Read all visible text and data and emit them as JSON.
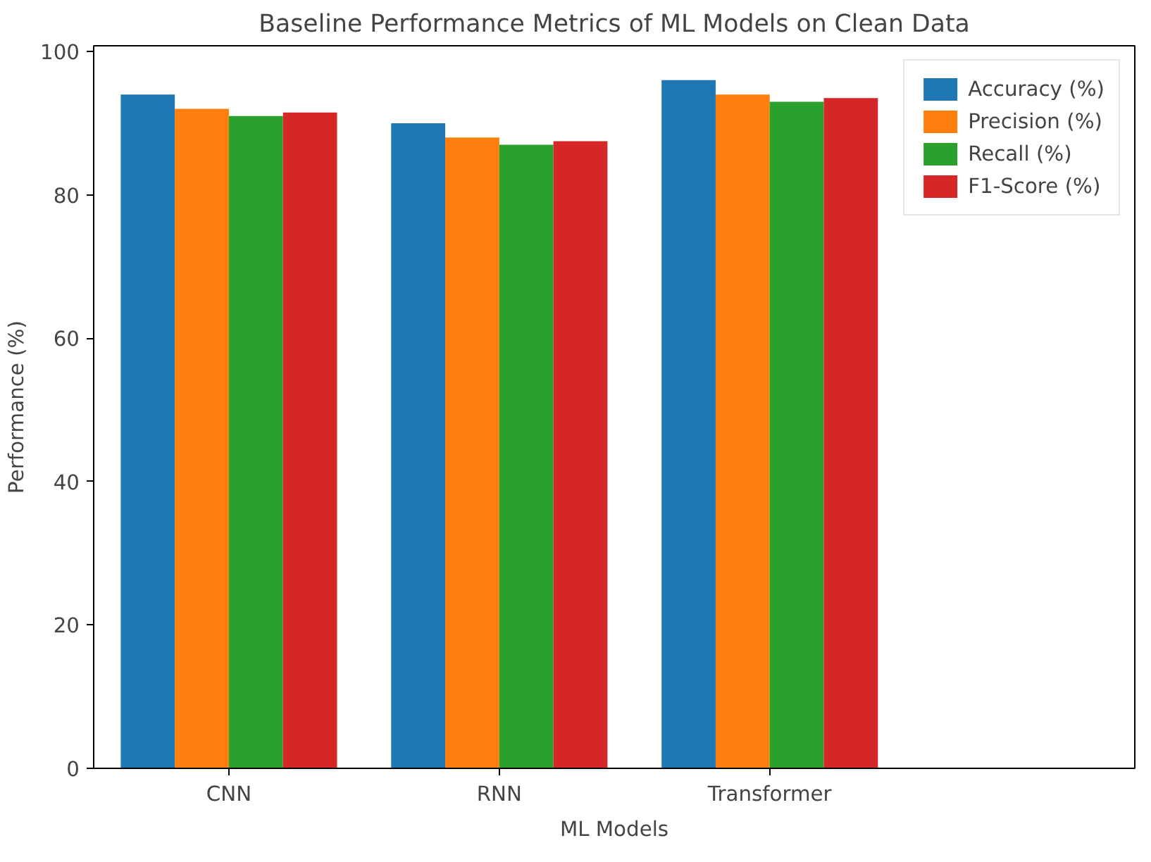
{
  "chart_data": {
    "type": "bar",
    "title": "Baseline Performance Metrics of ML Models on Clean Data",
    "xlabel": "ML Models",
    "ylabel": "Performance (%)",
    "categories": [
      "CNN",
      "RNN",
      "Transformer"
    ],
    "series": [
      {
        "name": "Accuracy (%)",
        "color": "#1f77b4",
        "values": [
          94,
          90,
          96
        ]
      },
      {
        "name": "Precision (%)",
        "color": "#ff7f0e",
        "values": [
          92,
          88,
          94
        ]
      },
      {
        "name": "Recall (%)",
        "color": "#2ca02c",
        "values": [
          91,
          87,
          93
        ]
      },
      {
        "name": "F1-Score (%)",
        "color": "#d62728",
        "values": [
          91.5,
          87.5,
          93.5
        ]
      }
    ],
    "ylim": [
      0,
      100.8
    ],
    "yticks": [
      0,
      20,
      40,
      60,
      80,
      100
    ],
    "grid": false,
    "legend": "top right"
  }
}
